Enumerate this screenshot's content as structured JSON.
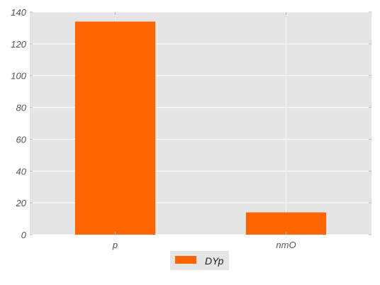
{
  "chart_data": {
    "type": "bar",
    "title": "",
    "xlabel": "",
    "ylabel": "",
    "categories": [
      "p",
      "nmO"
    ],
    "series": [
      {
        "name": "DYp",
        "values": [
          134,
          14
        ],
        "color": "#ff6600"
      }
    ],
    "ylim": [
      0,
      140
    ],
    "yticks": [
      0,
      20,
      40,
      60,
      80,
      100,
      120,
      140
    ],
    "grid": true,
    "legend_position": "bottom-center",
    "style": {
      "plot_background": "#e5e5e5",
      "grid_color": "#ffffff",
      "tick_color": "#bbbbbb"
    }
  }
}
